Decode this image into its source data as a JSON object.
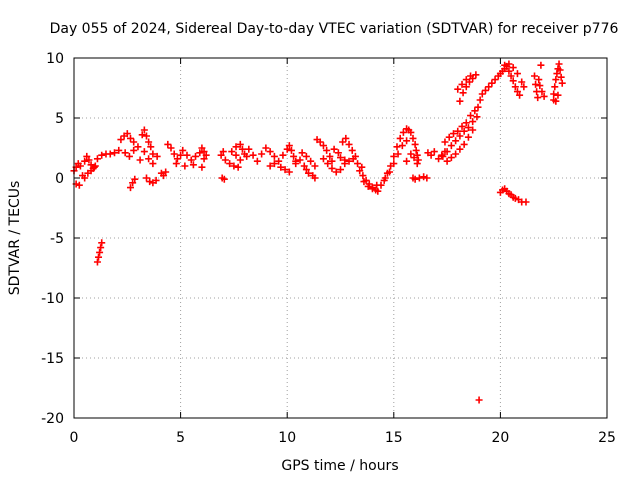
{
  "chart_data": {
    "type": "scatter",
    "title": "Day 055 of 2024, Sidereal Day-to-day VTEC variation (SDTVAR) for receiver p776",
    "xlabel": "GPS time / hours",
    "ylabel": "SDTVAR / TECUs",
    "xlim": [
      0,
      25
    ],
    "ylim": [
      -20,
      10
    ],
    "xticks": [
      0,
      5,
      10,
      15,
      20,
      25
    ],
    "yticks": [
      -20,
      -15,
      -10,
      -5,
      0,
      5,
      10
    ],
    "grid": true,
    "marker": "+",
    "series_color": "#ff0000",
    "series": [
      {
        "name": "SDTVAR",
        "points": [
          [
            0.0,
            0.6
          ],
          [
            0.1,
            0.9
          ],
          [
            0.2,
            1.2
          ],
          [
            0.3,
            1.0
          ],
          [
            0.1,
            -0.5
          ],
          [
            0.25,
            -0.6
          ],
          [
            0.4,
            0.2
          ],
          [
            0.5,
            1.4
          ],
          [
            0.6,
            1.8
          ],
          [
            0.7,
            1.5
          ],
          [
            0.8,
            1.1
          ],
          [
            0.9,
            0.8
          ],
          [
            1.0,
            1.0
          ],
          [
            1.1,
            1.6
          ],
          [
            0.5,
            0.0
          ],
          [
            0.65,
            0.4
          ],
          [
            0.8,
            0.6
          ],
          [
            0.95,
            0.9
          ],
          [
            1.1,
            -7.0
          ],
          [
            1.15,
            -6.6
          ],
          [
            1.2,
            -6.2
          ],
          [
            1.25,
            -5.8
          ],
          [
            1.3,
            -5.4
          ],
          [
            1.3,
            1.9
          ],
          [
            1.5,
            2.0
          ],
          [
            1.7,
            2.0
          ],
          [
            1.9,
            2.1
          ],
          [
            2.1,
            2.3
          ],
          [
            2.2,
            3.2
          ],
          [
            2.35,
            3.5
          ],
          [
            2.5,
            3.7
          ],
          [
            2.65,
            3.3
          ],
          [
            2.8,
            3.0
          ],
          [
            2.4,
            2.1
          ],
          [
            2.6,
            1.8
          ],
          [
            2.8,
            2.3
          ],
          [
            3.0,
            2.6
          ],
          [
            3.1,
            1.5
          ],
          [
            2.65,
            -0.8
          ],
          [
            2.75,
            -0.4
          ],
          [
            2.85,
            -0.1
          ],
          [
            3.2,
            3.6
          ],
          [
            3.3,
            4.0
          ],
          [
            3.4,
            3.5
          ],
          [
            3.5,
            3.0
          ],
          [
            3.6,
            2.6
          ],
          [
            3.7,
            2.0
          ],
          [
            3.4,
            0.0
          ],
          [
            3.55,
            -0.3
          ],
          [
            3.7,
            -0.4
          ],
          [
            3.85,
            -0.2
          ],
          [
            3.3,
            2.2
          ],
          [
            3.5,
            1.6
          ],
          [
            3.7,
            1.2
          ],
          [
            3.9,
            1.8
          ],
          [
            4.1,
            0.4
          ],
          [
            4.2,
            0.2
          ],
          [
            4.3,
            0.5
          ],
          [
            4.4,
            2.8
          ],
          [
            4.55,
            2.5
          ],
          [
            4.7,
            2.0
          ],
          [
            4.85,
            1.6
          ],
          [
            5.0,
            1.9
          ],
          [
            5.1,
            2.3
          ],
          [
            5.3,
            1.9
          ],
          [
            5.5,
            1.5
          ],
          [
            5.7,
            1.8
          ],
          [
            5.9,
            2.1
          ],
          [
            6.1,
            1.6
          ],
          [
            6.2,
            1.9
          ],
          [
            4.8,
            1.2
          ],
          [
            5.2,
            1.0
          ],
          [
            5.6,
            1.1
          ],
          [
            6.0,
            0.9
          ],
          [
            6.0,
            2.5
          ],
          [
            6.1,
            2.2
          ],
          [
            6.9,
            1.9
          ],
          [
            7.0,
            2.2
          ],
          [
            7.1,
            1.5
          ],
          [
            6.95,
            0.0
          ],
          [
            7.05,
            -0.1
          ],
          [
            7.4,
            2.2
          ],
          [
            7.6,
            1.9
          ],
          [
            7.8,
            1.5
          ],
          [
            8.0,
            2.0
          ],
          [
            8.2,
            2.4
          ],
          [
            8.4,
            1.9
          ],
          [
            8.6,
            1.4
          ],
          [
            7.6,
            2.6
          ],
          [
            7.8,
            2.8
          ],
          [
            7.9,
            2.4
          ],
          [
            8.1,
            1.8
          ],
          [
            7.3,
            1.2
          ],
          [
            7.5,
            1.0
          ],
          [
            7.7,
            0.9
          ],
          [
            8.8,
            2.0
          ],
          [
            9.0,
            2.5
          ],
          [
            9.2,
            2.2
          ],
          [
            9.4,
            1.8
          ],
          [
            9.6,
            1.4
          ],
          [
            9.8,
            1.9
          ],
          [
            10.0,
            2.4
          ],
          [
            10.1,
            2.7
          ],
          [
            10.2,
            2.3
          ],
          [
            10.3,
            1.8
          ],
          [
            10.4,
            1.4
          ],
          [
            9.2,
            1.0
          ],
          [
            9.4,
            1.2
          ],
          [
            9.7,
            0.9
          ],
          [
            9.9,
            0.7
          ],
          [
            10.1,
            0.5
          ],
          [
            10.4,
            1.2
          ],
          [
            10.6,
            1.5
          ],
          [
            10.8,
            1.0
          ],
          [
            10.9,
            0.7
          ],
          [
            11.0,
            0.4
          ],
          [
            11.2,
            0.2
          ],
          [
            11.3,
            0.0
          ],
          [
            10.7,
            2.1
          ],
          [
            10.9,
            1.8
          ],
          [
            11.1,
            1.4
          ],
          [
            11.3,
            1.0
          ],
          [
            11.4,
            3.2
          ],
          [
            11.55,
            3.0
          ],
          [
            11.7,
            2.7
          ],
          [
            11.85,
            2.3
          ],
          [
            12.0,
            1.8
          ],
          [
            12.1,
            1.4
          ],
          [
            11.7,
            1.6
          ],
          [
            11.9,
            1.2
          ],
          [
            12.1,
            0.8
          ],
          [
            12.3,
            0.5
          ],
          [
            12.5,
            0.7
          ],
          [
            12.2,
            2.4
          ],
          [
            12.4,
            2.1
          ],
          [
            12.5,
            1.7
          ],
          [
            12.7,
            1.5
          ],
          [
            12.6,
            3.0
          ],
          [
            12.75,
            3.3
          ],
          [
            12.9,
            2.8
          ],
          [
            13.05,
            2.3
          ],
          [
            13.2,
            1.8
          ],
          [
            12.7,
            1.2
          ],
          [
            12.9,
            1.4
          ],
          [
            13.1,
            1.6
          ],
          [
            13.3,
            1.2
          ],
          [
            13.5,
            0.9
          ],
          [
            13.4,
            0.6
          ],
          [
            13.55,
            0.2
          ],
          [
            13.7,
            -0.2
          ],
          [
            13.85,
            -0.5
          ],
          [
            14.0,
            -0.8
          ],
          [
            14.15,
            -1.0
          ],
          [
            14.25,
            -1.1
          ],
          [
            13.6,
            -0.3
          ],
          [
            13.8,
            -0.7
          ],
          [
            14.0,
            -0.9
          ],
          [
            14.2,
            -0.6
          ],
          [
            14.4,
            -0.6
          ],
          [
            14.55,
            -0.2
          ],
          [
            14.7,
            0.4
          ],
          [
            14.85,
            1.0
          ],
          [
            15.0,
            1.8
          ],
          [
            15.15,
            2.6
          ],
          [
            15.3,
            3.3
          ],
          [
            15.45,
            3.8
          ],
          [
            15.6,
            4.1
          ],
          [
            15.7,
            4.0
          ],
          [
            14.6,
            0.0
          ],
          [
            14.8,
            0.5
          ],
          [
            15.0,
            1.2
          ],
          [
            15.2,
            2.0
          ],
          [
            15.4,
            2.7
          ],
          [
            15.6,
            3.1
          ],
          [
            15.8,
            3.8
          ],
          [
            15.9,
            3.3
          ],
          [
            16.0,
            2.8
          ],
          [
            16.05,
            2.3
          ],
          [
            16.1,
            1.9
          ],
          [
            16.15,
            1.5
          ],
          [
            15.6,
            1.4
          ],
          [
            15.8,
            2.0
          ],
          [
            15.95,
            1.7
          ],
          [
            16.1,
            1.2
          ],
          [
            15.9,
            0.0
          ],
          [
            16.0,
            -0.1
          ],
          [
            16.2,
            0.0
          ],
          [
            16.4,
            0.1
          ],
          [
            16.55,
            0.0
          ],
          [
            16.6,
            2.1
          ],
          [
            16.75,
            1.9
          ],
          [
            16.9,
            2.2
          ],
          [
            17.3,
            1.8
          ],
          [
            17.5,
            2.2
          ],
          [
            17.7,
            2.7
          ],
          [
            17.9,
            3.1
          ],
          [
            18.1,
            3.5
          ],
          [
            18.3,
            3.9
          ],
          [
            18.5,
            4.2
          ],
          [
            18.7,
            4.7
          ],
          [
            18.9,
            5.1
          ],
          [
            17.4,
            3.0
          ],
          [
            17.6,
            3.4
          ],
          [
            17.8,
            3.7
          ],
          [
            18.0,
            3.9
          ],
          [
            18.2,
            4.3
          ],
          [
            18.4,
            4.6
          ],
          [
            18.6,
            5.2
          ],
          [
            18.8,
            5.6
          ],
          [
            17.5,
            1.4
          ],
          [
            17.7,
            1.7
          ],
          [
            17.9,
            2.0
          ],
          [
            18.1,
            2.4
          ],
          [
            18.3,
            2.8
          ],
          [
            18.5,
            3.4
          ],
          [
            18.7,
            4.0
          ],
          [
            17.1,
            1.6
          ],
          [
            17.25,
            1.9
          ],
          [
            17.4,
            2.2
          ],
          [
            18.1,
            6.4
          ],
          [
            18.25,
            7.1
          ],
          [
            18.4,
            7.6
          ],
          [
            18.55,
            8.0
          ],
          [
            18.7,
            8.3
          ],
          [
            18.85,
            8.6
          ],
          [
            18.0,
            7.4
          ],
          [
            18.2,
            7.8
          ],
          [
            18.4,
            8.2
          ],
          [
            18.6,
            8.5
          ],
          [
            18.95,
            5.9
          ],
          [
            19.05,
            6.5
          ],
          [
            19.15,
            7.0
          ],
          [
            19.3,
            7.3
          ],
          [
            19.45,
            7.6
          ],
          [
            19.6,
            7.9
          ],
          [
            19.75,
            8.2
          ],
          [
            19.9,
            8.5
          ],
          [
            19.0,
            -18.5
          ],
          [
            20.0,
            8.7
          ],
          [
            20.1,
            8.9
          ],
          [
            20.2,
            9.1
          ],
          [
            20.3,
            9.3
          ],
          [
            20.4,
            8.9
          ],
          [
            20.5,
            8.5
          ],
          [
            20.6,
            8.1
          ],
          [
            20.7,
            7.6
          ],
          [
            20.8,
            7.2
          ],
          [
            20.9,
            6.9
          ],
          [
            20.2,
            9.4
          ],
          [
            20.4,
            9.5
          ],
          [
            20.6,
            9.2
          ],
          [
            20.8,
            8.7
          ],
          [
            20.0,
            -1.2
          ],
          [
            20.1,
            -1.0
          ],
          [
            20.2,
            -0.9
          ],
          [
            20.3,
            -1.1
          ],
          [
            20.4,
            -1.3
          ],
          [
            20.5,
            -1.4
          ],
          [
            20.6,
            -1.6
          ],
          [
            20.7,
            -1.7
          ],
          [
            20.85,
            -1.8
          ],
          [
            21.0,
            -2.0
          ],
          [
            21.2,
            -2.0
          ],
          [
            21.0,
            8.0
          ],
          [
            21.1,
            7.6
          ],
          [
            21.6,
            8.5
          ],
          [
            21.65,
            7.8
          ],
          [
            21.7,
            7.2
          ],
          [
            21.75,
            6.7
          ],
          [
            21.8,
            8.2
          ],
          [
            21.85,
            7.7
          ],
          [
            21.95,
            7.2
          ],
          [
            22.05,
            6.8
          ],
          [
            21.9,
            9.4
          ],
          [
            22.5,
            7.0
          ],
          [
            22.55,
            7.6
          ],
          [
            22.6,
            8.2
          ],
          [
            22.65,
            8.7
          ],
          [
            22.7,
            9.1
          ],
          [
            22.75,
            9.5
          ],
          [
            22.8,
            9.0
          ],
          [
            22.85,
            8.4
          ],
          [
            22.9,
            7.9
          ],
          [
            22.5,
            6.5
          ],
          [
            22.6,
            6.4
          ],
          [
            22.7,
            6.9
          ]
        ]
      }
    ]
  }
}
